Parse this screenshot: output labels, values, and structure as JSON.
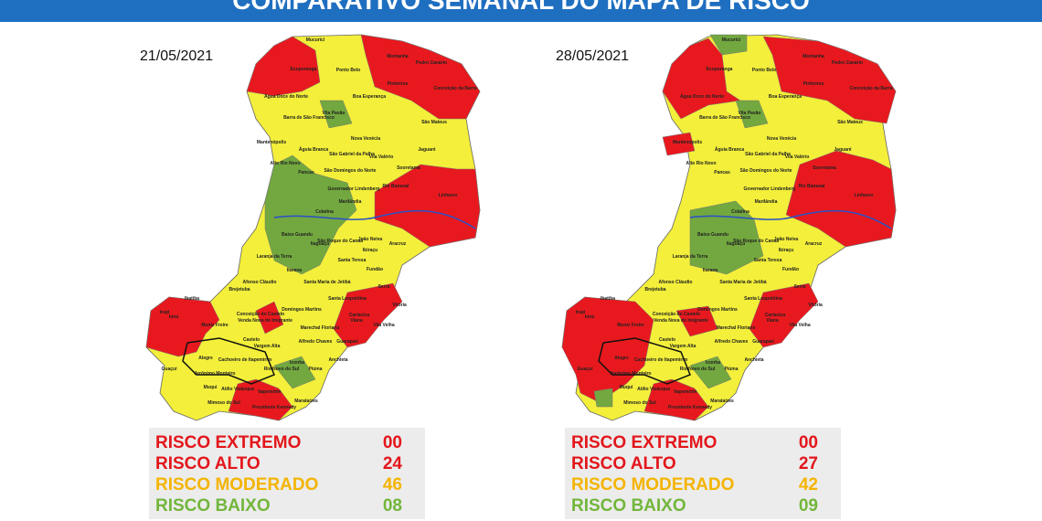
{
  "header": {
    "title": "COMPARATIVO SEMANAL DO MAPA DE RISCO"
  },
  "maps": [
    {
      "date": "21/05/2021",
      "legend": [
        {
          "label": "RISCO EXTREMO",
          "count": "00",
          "color": "#e3161b"
        },
        {
          "label": "RISCO ALTO",
          "count": "24",
          "color": "#e3161b"
        },
        {
          "label": "RISCO MODERADO",
          "count": "46",
          "color": "#f4b400"
        },
        {
          "label": "RISCO BAIXO",
          "count": "08",
          "color": "#72b63b"
        }
      ]
    },
    {
      "date": "28/05/2021",
      "legend": [
        {
          "label": "RISCO EXTREMO",
          "count": "00",
          "color": "#e3161b"
        },
        {
          "label": "RISCO ALTO",
          "count": "27",
          "color": "#e3161b"
        },
        {
          "label": "RISCO MODERADO",
          "count": "42",
          "color": "#f4b400"
        },
        {
          "label": "RISCO BAIXO",
          "count": "09",
          "color": "#72b63b"
        }
      ]
    }
  ],
  "municipality_labels": [
    "Mucurici",
    "Montanha",
    "Pedro Canário",
    "Ecoporanga",
    "Ponto Belo",
    "Pinheiros",
    "Conceição da Barra",
    "Água Doce do Norte",
    "Boa Esperança",
    "Barra de São Francisco",
    "Vila Pavão",
    "São Mateus",
    "Nova Venécia",
    "Mantenópolis",
    "Águia Branca",
    "São Gabriel da Palha",
    "Vila Valério",
    "Jaguaré",
    "Alto Rio Novo",
    "Pancas",
    "São Domingos do Norte",
    "Sooretama",
    "Governador Lindenberg",
    "Rio Bananal",
    "Linhares",
    "Marilândia",
    "Colatina",
    "Baixo Guandu",
    "Itaguaçu",
    "São Roque do Canaã",
    "João Neiva",
    "Aracruz",
    "Ibiraçu",
    "Laranja da Terra",
    "Santa Teresa",
    "Itarana",
    "Fundão",
    "Afonso Cláudio",
    "Santa Maria de Jetibá",
    "Santa Leopoldina",
    "Serra",
    "Brejetuba",
    "Vitória",
    "Domingos Martins",
    "Cariacica",
    "Vila Velha",
    "Viana",
    "Marechal Floriano",
    "Alfredo Chaves",
    "Guarapari",
    "Anchieta",
    "Piúma",
    "Iconha",
    "Rio Novo do Sul",
    "Itapemirim",
    "Presidente Kennedy",
    "Marataízes",
    "Mimoso do Sul",
    "Atílio Vivácqua",
    "Muqui",
    "Cachoeiro de Itapemirim",
    "Castelo",
    "Alegre",
    "Guaçuí",
    "Ibatiba",
    "Iúna",
    "Muniz Freire",
    "Irupi",
    "Conceição do Castelo",
    "Venda Nova do Imigrante",
    "Vargem Alta",
    "Jerônimo Monteiro"
  ]
}
